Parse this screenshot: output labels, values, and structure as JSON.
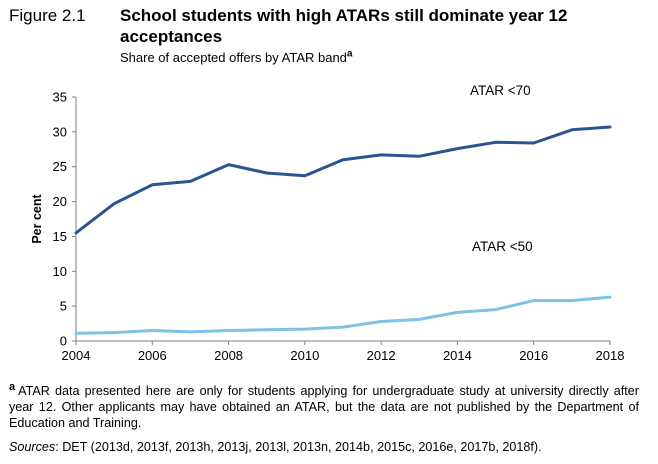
{
  "figure": {
    "label": "Figure 2.1",
    "title": "School students with high ATARs still dominate year 12 acceptances",
    "subtitle": "Share of accepted offers by ATAR band",
    "subtitle_marker": "a"
  },
  "chart_data": {
    "type": "line",
    "ylabel": "Per cent",
    "xlabel": "",
    "xlim": [
      2004,
      2018
    ],
    "ylim": [
      0,
      35
    ],
    "x_ticks": [
      "2004",
      "2006",
      "2008",
      "2010",
      "2012",
      "2014",
      "2016",
      "2018"
    ],
    "y_ticks": [
      "0",
      "5",
      "10",
      "15",
      "20",
      "25",
      "30",
      "35"
    ],
    "grid": false,
    "legend": "inline labels",
    "x": [
      2004,
      2005,
      2006,
      2007,
      2008,
      2009,
      2010,
      2011,
      2012,
      2013,
      2014,
      2015,
      2016,
      2017,
      2018
    ],
    "series": [
      {
        "name": "ATAR <70",
        "color": "#2a5592",
        "values": [
          15.5,
          19.7,
          22.4,
          22.9,
          25.3,
          24.1,
          23.7,
          26.0,
          26.7,
          26.5,
          27.6,
          28.5,
          28.4,
          30.3,
          30.7
        ]
      },
      {
        "name": "ATAR <50",
        "color": "#7fc2e3",
        "values": [
          1.1,
          1.2,
          1.5,
          1.3,
          1.5,
          1.6,
          1.7,
          2.0,
          2.8,
          3.1,
          4.1,
          4.5,
          5.8,
          5.8,
          6.3
        ]
      }
    ]
  },
  "note": {
    "marker": "a",
    "text": "ATAR data presented here are only for students applying for undergraduate study at university directly after year 12. Other applicants may have obtained an ATAR, but the data are not published by the Department of Education and Training."
  },
  "sources": {
    "label": "Sources",
    "text": ": DET (2013d, 2013f, 2013h, 2013j, 2013l, 2013n, 2014b, 2015c, 2016e, 2017b, 2018f)."
  }
}
